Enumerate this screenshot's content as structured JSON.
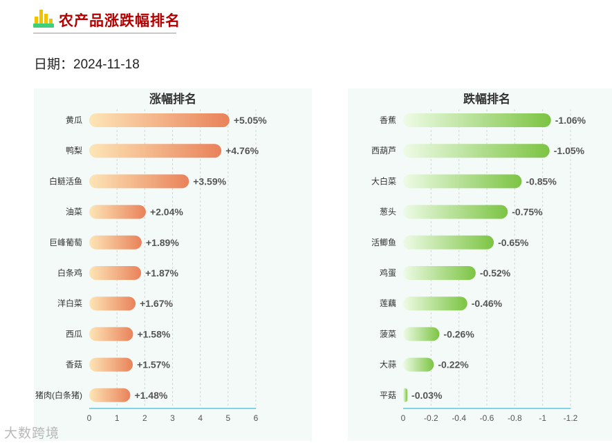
{
  "header": {
    "title": "农产品涨跌幅排名",
    "date_text": "日期：2024-11-18"
  },
  "watermark": "大数跨境",
  "chart_data": [
    {
      "type": "bar",
      "orientation": "horizontal",
      "title": "涨幅排名",
      "categories": [
        "黄瓜",
        "鸭梨",
        "白鲢活鱼",
        "油菜",
        "巨峰葡萄",
        "白条鸡",
        "洋白菜",
        "西瓜",
        "香菇",
        "猪肉(白条猪)"
      ],
      "values": [
        5.05,
        4.76,
        3.59,
        2.04,
        1.89,
        1.87,
        1.67,
        1.58,
        1.57,
        1.48
      ],
      "labels": [
        "+5.05%",
        "+4.76%",
        "+3.59%",
        "+2.04%",
        "+1.89%",
        "+1.87%",
        "+1.67%",
        "+1.58%",
        "+1.57%",
        "+1.48%"
      ],
      "xticks": [
        "0",
        "1",
        "2",
        "3",
        "4",
        "5",
        "6"
      ],
      "xlim": [
        0,
        6
      ],
      "grid": true,
      "colors": {
        "bar_start": "#fde5b6",
        "bar_end": "#e9825a"
      }
    },
    {
      "type": "bar",
      "orientation": "horizontal",
      "title": "跌幅排名",
      "categories": [
        "香蕉",
        "西葫芦",
        "大白菜",
        "葱头",
        "活鲫鱼",
        "鸡蛋",
        "莲藕",
        "菠菜",
        "大蒜",
        "平菇"
      ],
      "values": [
        -1.06,
        -1.05,
        -0.85,
        -0.75,
        -0.65,
        -0.52,
        -0.46,
        -0.26,
        -0.22,
        -0.03
      ],
      "labels": [
        "-1.06%",
        "-1.05%",
        "-0.85%",
        "-0.75%",
        "-0.65%",
        "-0.52%",
        "-0.46%",
        "-0.26%",
        "-0.22%",
        "-0.03%"
      ],
      "xticks": [
        "0",
        "-0.2",
        "-0.4",
        "-0.6",
        "-0.8",
        "-1",
        "-1.2"
      ],
      "xlim": [
        0,
        -1.2
      ],
      "grid": true,
      "colors": {
        "bar_start": "#eefbe6",
        "bar_end": "#7cc443"
      }
    }
  ]
}
